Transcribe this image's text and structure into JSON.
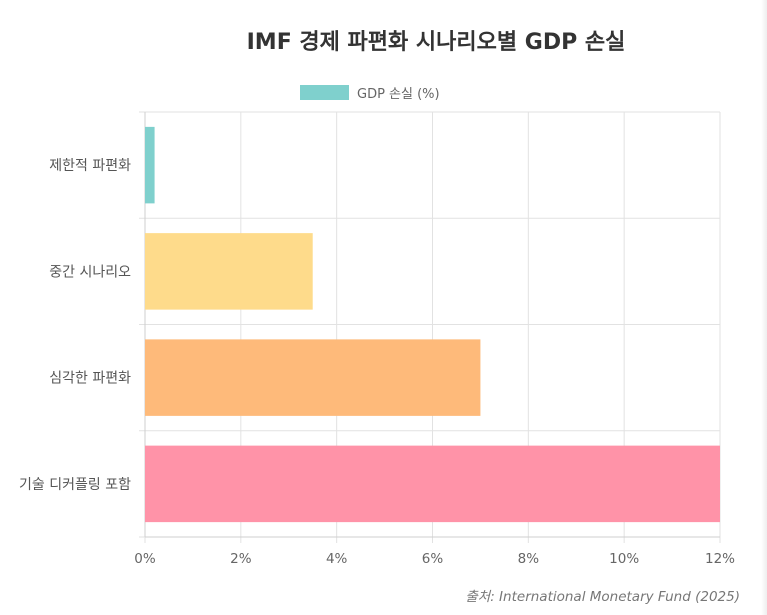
{
  "chart_data": {
    "type": "bar",
    "orientation": "horizontal",
    "title": "IMF 경제 파편화 시나리오별 GDP 손실",
    "categories": [
      "제한적 파편화",
      "중간 시나리오",
      "심각한 파편화",
      "기술 디커플링 포함"
    ],
    "series": [
      {
        "name": "GDP 손실 (%)",
        "values": [
          0.2,
          3.5,
          7.0,
          12.0
        ]
      }
    ],
    "bar_colors": [
      "#7fd0cd",
      "#fedb8b",
      "#feba7a",
      "#ff93a8"
    ],
    "xlim": [
      0,
      12
    ],
    "x_ticks": [
      "0%",
      "2%",
      "4%",
      "6%",
      "8%",
      "10%",
      "12%"
    ],
    "x_tick_values": [
      0,
      2,
      4,
      6,
      8,
      10,
      12
    ],
    "legend_position": "top-center",
    "legend_color": "#7fd0cd",
    "grid": true,
    "source": "출처: International Monetary Fund (2025)"
  }
}
